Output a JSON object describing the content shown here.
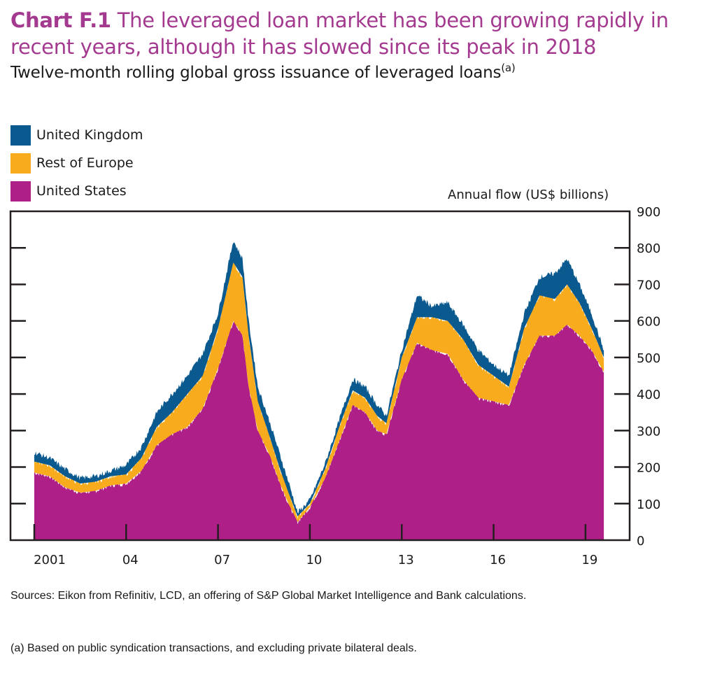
{
  "header": {
    "chart_number": "Chart F.1",
    "title": "The leveraged loan market has been growing rapidly in recent years, although it has slowed since its peak in 2018",
    "subtitle": "Twelve-month rolling global gross issuance of leveraged loans",
    "subtitle_note": "(a)"
  },
  "legend": [
    {
      "label": "United Kingdom",
      "color": "#0b5a8f"
    },
    {
      "label": "Rest of Europe",
      "color": "#f8ab1d"
    },
    {
      "label": "United States",
      "color": "#ae1f87"
    }
  ],
  "footer": {
    "sources": "Sources: Eikon from Refinitiv, LCD, an offering of S&P Global Market Intelligence and Bank calculations.",
    "footnote": "(a)  Based on public syndication transactions, and excluding private bilateral deals."
  },
  "chart_data": {
    "type": "area",
    "stacked": true,
    "title": "The leveraged loan market has been growing rapidly in recent years, although it has slowed since its peak in 2018",
    "subtitle": "Twelve-month rolling global gross issuance of leveraged loans",
    "xlabel": "",
    "ylabel": "Annual flow (US$ billions)",
    "yaxis_side": "right",
    "ylim": [
      0,
      900
    ],
    "yticks": [
      0,
      100,
      200,
      300,
      400,
      500,
      600,
      700,
      800,
      900
    ],
    "xlim": [
      2000.2,
      2020.4
    ],
    "xticks": [
      2001,
      2004,
      2007,
      2010,
      2013,
      2016,
      2019
    ],
    "xtick_labels": [
      "2001",
      "04",
      "07",
      "10",
      "13",
      "16",
      "19"
    ],
    "grid": false,
    "legend_position": "top-left",
    "x": [
      2001.0,
      2001.5,
      2002.0,
      2002.5,
      2003.0,
      2003.5,
      2004.0,
      2004.5,
      2005.0,
      2005.5,
      2006.0,
      2006.5,
      2007.0,
      2007.5,
      2007.8,
      2008.0,
      2008.3,
      2008.7,
      2009.0,
      2009.3,
      2009.6,
      2010.0,
      2010.5,
      2011.0,
      2011.4,
      2011.8,
      2012.2,
      2012.5,
      2013.0,
      2013.5,
      2014.0,
      2014.5,
      2015.0,
      2015.5,
      2016.0,
      2016.5,
      2017.0,
      2017.5,
      2018.0,
      2018.4,
      2018.8,
      2019.2,
      2019.6
    ],
    "series": [
      {
        "name": "United States",
        "color": "#ae1f87",
        "values": [
          185,
          175,
          145,
          130,
          135,
          150,
          155,
          190,
          260,
          290,
          310,
          360,
          470,
          600,
          560,
          420,
          300,
          230,
          160,
          100,
          50,
          90,
          170,
          280,
          370,
          350,
          300,
          290,
          440,
          540,
          520,
          510,
          440,
          390,
          380,
          370,
          480,
          560,
          560,
          590,
          560,
          520,
          460
        ]
      },
      {
        "name": "Rest of Europe",
        "color": "#f8ab1d",
        "values": [
          30,
          30,
          30,
          25,
          25,
          25,
          25,
          35,
          50,
          60,
          90,
          90,
          110,
          160,
          160,
          140,
          80,
          50,
          40,
          30,
          15,
          10,
          25,
          40,
          40,
          40,
          40,
          30,
          60,
          70,
          90,
          90,
          110,
          90,
          70,
          50,
          100,
          110,
          100,
          110,
          90,
          60,
          40
        ]
      },
      {
        "name": "United Kingdom",
        "color": "#0b5a8f",
        "values": [
          25,
          20,
          20,
          15,
          15,
          15,
          25,
          30,
          40,
          50,
          50,
          60,
          40,
          60,
          50,
          40,
          40,
          40,
          40,
          30,
          10,
          10,
          15,
          20,
          30,
          30,
          30,
          20,
          20,
          60,
          30,
          50,
          40,
          40,
          30,
          30,
          40,
          50,
          70,
          70,
          50,
          40,
          20
        ]
      }
    ]
  }
}
